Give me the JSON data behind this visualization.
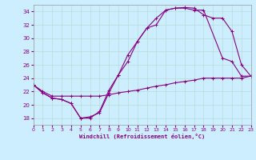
{
  "xlabel": "Windchill (Refroidissement éolien,°C)",
  "bg_color": "#cceeff",
  "line_color": "#880088",
  "grid_color": "#aaddcc",
  "xmin": 0,
  "xmax": 23,
  "ymin": 17,
  "ymax": 35,
  "yticks": [
    18,
    20,
    22,
    24,
    26,
    28,
    30,
    32,
    34
  ],
  "xticks": [
    0,
    1,
    2,
    3,
    4,
    5,
    6,
    7,
    8,
    9,
    10,
    11,
    12,
    13,
    14,
    15,
    16,
    17,
    18,
    19,
    20,
    21,
    22,
    23
  ],
  "line1_x": [
    0,
    1,
    2,
    3,
    4,
    5,
    6,
    7,
    8,
    9,
    10,
    11,
    12,
    13,
    14,
    15,
    16,
    17,
    18,
    20,
    21,
    22,
    23
  ],
  "line1_y": [
    23.0,
    21.8,
    21.0,
    20.8,
    20.2,
    18.0,
    18.0,
    19.0,
    22.2,
    24.5,
    26.5,
    29.5,
    31.5,
    32.0,
    34.2,
    34.5,
    34.5,
    34.2,
    34.2,
    27.0,
    26.5,
    24.3,
    24.3
  ],
  "line2_x": [
    0,
    1,
    2,
    3,
    4,
    5,
    6,
    7,
    8,
    9,
    10,
    11,
    12,
    13,
    14,
    15,
    16,
    17,
    18,
    19,
    20,
    21,
    22,
    23
  ],
  "line2_y": [
    23.0,
    21.8,
    21.0,
    20.8,
    20.2,
    18.0,
    18.2,
    18.8,
    21.8,
    24.5,
    27.5,
    29.5,
    31.5,
    33.0,
    34.2,
    34.5,
    34.6,
    34.5,
    33.5,
    33.0,
    33.0,
    31.0,
    26.0,
    24.3
  ],
  "line3_x": [
    0,
    1,
    2,
    3,
    4,
    5,
    6,
    7,
    8,
    9,
    10,
    11,
    12,
    13,
    14,
    15,
    16,
    17,
    18,
    19,
    20,
    21,
    22,
    23
  ],
  "line3_y": [
    23.0,
    22.0,
    21.3,
    21.3,
    21.3,
    21.3,
    21.3,
    21.3,
    21.5,
    21.8,
    22.0,
    22.2,
    22.5,
    22.8,
    23.0,
    23.3,
    23.5,
    23.7,
    24.0,
    24.0,
    24.0,
    24.0,
    24.0,
    24.3
  ]
}
